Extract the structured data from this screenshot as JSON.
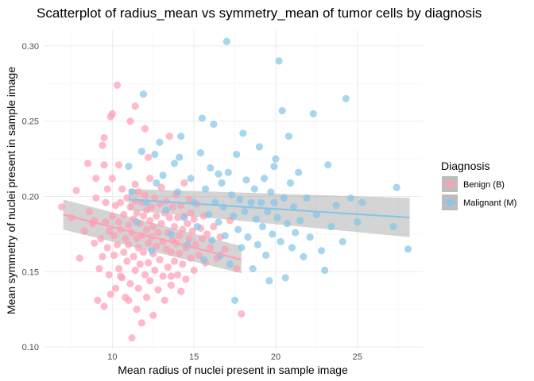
{
  "chart_data": {
    "type": "scatter",
    "title": "Scatterplot of radius_mean vs symmetry_mean of tumor cells by diagnosis",
    "xlabel": "Mean radius of nuclei present in sample image",
    "ylabel": "Mean symmetry of nuclei present in sample image",
    "xlim": [
      5.8,
      29.0
    ],
    "ylim": [
      0.0985,
      0.3105
    ],
    "x_ticks": [
      10,
      15,
      20,
      25
    ],
    "x_tick_labels": [
      "10",
      "15",
      "20",
      "25"
    ],
    "y_ticks": [
      0.1,
      0.15,
      0.2,
      0.25,
      0.3
    ],
    "y_tick_labels": [
      "0.10",
      "0.15",
      "0.20",
      "0.25",
      "0.30"
    ],
    "grid": true,
    "legend": {
      "title": "Diagnosis",
      "placement": "right",
      "entries": [
        "Benign (B)",
        "Malignant (M)"
      ]
    },
    "series": [
      {
        "name": "Benign (B)",
        "color": "#ffa0b4",
        "trend": {
          "x": [
            7.0,
            17.9
          ],
          "y": [
            0.188,
            0.158
          ],
          "band_lo": [
            0.178,
            0.149
          ],
          "band_hi": [
            0.198,
            0.167
          ]
        },
        "points": [
          [
            6.9,
            0.193
          ],
          [
            7.5,
            0.186
          ],
          [
            7.8,
            0.204
          ],
          [
            8.0,
            0.159
          ],
          [
            8.3,
            0.177
          ],
          [
            8.5,
            0.222
          ],
          [
            8.6,
            0.19
          ],
          [
            8.8,
            0.182
          ],
          [
            8.9,
            0.184
          ],
          [
            8.9,
            0.169
          ],
          [
            9.0,
            0.212
          ],
          [
            9.0,
            0.199
          ],
          [
            9.1,
            0.131
          ],
          [
            9.2,
            0.152
          ],
          [
            9.3,
            0.172
          ],
          [
            9.4,
            0.16
          ],
          [
            9.4,
            0.234
          ],
          [
            9.5,
            0.239
          ],
          [
            9.5,
            0.221
          ],
          [
            9.5,
            0.127
          ],
          [
            9.6,
            0.196
          ],
          [
            9.6,
            0.183
          ],
          [
            9.7,
            0.166
          ],
          [
            9.7,
            0.205
          ],
          [
            9.8,
            0.177
          ],
          [
            9.8,
            0.148
          ],
          [
            9.9,
            0.253
          ],
          [
            9.9,
            0.135
          ],
          [
            10.0,
            0.255
          ],
          [
            10.0,
            0.187
          ],
          [
            10.0,
            0.212
          ],
          [
            10.1,
            0.161
          ],
          [
            10.1,
            0.174
          ],
          [
            10.2,
            0.194
          ],
          [
            10.2,
            0.139
          ],
          [
            10.3,
            0.274
          ],
          [
            10.3,
            0.168
          ],
          [
            10.4,
            0.183
          ],
          [
            10.4,
            0.221
          ],
          [
            10.4,
            0.152
          ],
          [
            10.5,
            0.196
          ],
          [
            10.5,
            0.178
          ],
          [
            10.6,
            0.146
          ],
          [
            10.6,
            0.205
          ],
          [
            10.7,
            0.163
          ],
          [
            10.7,
            0.188
          ],
          [
            10.8,
            0.172
          ],
          [
            10.8,
            0.133
          ],
          [
            10.9,
            0.199
          ],
          [
            10.9,
            0.157
          ],
          [
            11.0,
            0.181
          ],
          [
            11.0,
            0.168
          ],
          [
            11.1,
            0.25
          ],
          [
            11.1,
            0.193
          ],
          [
            11.1,
            0.142
          ],
          [
            11.2,
            0.176
          ],
          [
            11.2,
            0.106
          ],
          [
            11.3,
            0.185
          ],
          [
            11.3,
            0.16
          ],
          [
            11.4,
            0.26
          ],
          [
            11.4,
            0.197
          ],
          [
            11.4,
            0.151
          ],
          [
            11.5,
            0.172
          ],
          [
            11.5,
            0.189
          ],
          [
            11.5,
            0.125
          ],
          [
            11.6,
            0.166
          ],
          [
            11.6,
            0.203
          ],
          [
            11.6,
            0.139
          ],
          [
            11.7,
            0.182
          ],
          [
            11.7,
            0.155
          ],
          [
            11.8,
            0.196
          ],
          [
            11.8,
            0.174
          ],
          [
            11.8,
            0.116
          ],
          [
            11.9,
            0.187
          ],
          [
            11.9,
            0.163
          ],
          [
            12.0,
            0.245
          ],
          [
            12.0,
            0.201
          ],
          [
            12.0,
            0.148
          ],
          [
            12.1,
            0.178
          ],
          [
            12.1,
            0.191
          ],
          [
            12.1,
            0.133
          ],
          [
            12.2,
            0.169
          ],
          [
            12.2,
            0.156
          ],
          [
            12.3,
            0.184
          ],
          [
            12.3,
            0.212
          ],
          [
            12.3,
            0.144
          ],
          [
            12.4,
            0.173
          ],
          [
            12.4,
            0.193
          ],
          [
            12.5,
            0.162
          ],
          [
            12.5,
            0.121
          ],
          [
            12.5,
            0.18
          ],
          [
            12.6,
            0.151
          ],
          [
            12.6,
            0.199
          ],
          [
            12.7,
            0.187
          ],
          [
            12.7,
            0.167
          ],
          [
            12.8,
            0.138
          ],
          [
            12.8,
            0.176
          ],
          [
            12.9,
            0.195
          ],
          [
            12.9,
            0.158
          ],
          [
            13.0,
            0.182
          ],
          [
            13.0,
            0.206
          ],
          [
            13.1,
            0.17
          ],
          [
            13.1,
            0.147
          ],
          [
            13.2,
            0.189
          ],
          [
            13.2,
            0.131
          ],
          [
            13.3,
            0.165
          ],
          [
            13.3,
            0.197
          ],
          [
            13.4,
            0.176
          ],
          [
            13.4,
            0.153
          ],
          [
            13.5,
            0.186
          ],
          [
            13.5,
            0.24
          ],
          [
            13.6,
            0.163
          ],
          [
            13.6,
            0.141
          ],
          [
            13.7,
            0.193
          ],
          [
            13.7,
            0.171
          ],
          [
            13.8,
            0.157
          ],
          [
            13.8,
            0.18
          ],
          [
            13.9,
            0.169
          ],
          [
            13.9,
            0.201
          ],
          [
            14.0,
            0.148
          ],
          [
            14.0,
            0.186
          ],
          [
            14.1,
            0.174
          ],
          [
            14.1,
            0.162
          ],
          [
            14.2,
            0.194
          ],
          [
            14.2,
            0.137
          ],
          [
            14.3,
            0.178
          ],
          [
            14.3,
            0.155
          ],
          [
            14.4,
            0.187
          ],
          [
            14.4,
            0.209
          ],
          [
            14.5,
            0.166
          ],
          [
            14.5,
            0.145
          ],
          [
            14.6,
            0.182
          ],
          [
            14.7,
            0.172
          ],
          [
            14.7,
            0.198
          ],
          [
            14.8,
            0.159
          ],
          [
            14.8,
            0.189
          ],
          [
            14.9,
            0.177
          ],
          [
            15.0,
            0.151
          ],
          [
            15.0,
            0.185
          ],
          [
            15.1,
            0.168
          ],
          [
            15.2,
            0.195
          ],
          [
            15.3,
            0.161
          ],
          [
            15.4,
            0.179
          ],
          [
            15.5,
            0.172
          ],
          [
            15.6,
            0.187
          ],
          [
            15.7,
            0.156
          ],
          [
            15.8,
            0.175
          ],
          [
            16.0,
            0.166
          ],
          [
            16.2,
            0.18
          ],
          [
            16.4,
            0.159
          ],
          [
            16.6,
            0.173
          ],
          [
            16.9,
            0.165
          ],
          [
            17.2,
            0.184
          ],
          [
            17.6,
            0.152
          ],
          [
            17.9,
            0.122
          ],
          [
            11.4,
            0.208
          ],
          [
            12.2,
            0.226
          ],
          [
            11.0,
            0.131
          ],
          [
            13.6,
            0.147
          ],
          [
            10.5,
            0.147
          ]
        ]
      },
      {
        "name": "Malignant (M)",
        "color": "#87c6e8",
        "trend": {
          "x": [
            11.0,
            28.2
          ],
          "y": [
            0.198,
            0.186
          ],
          "band_lo": [
            0.191,
            0.173
          ],
          "band_hi": [
            0.205,
            0.199
          ]
        },
        "points": [
          [
            11.0,
            0.22
          ],
          [
            11.2,
            0.203
          ],
          [
            11.5,
            0.183
          ],
          [
            11.8,
            0.23
          ],
          [
            11.9,
            0.268
          ],
          [
            12.1,
            0.196
          ],
          [
            12.4,
            0.164
          ],
          [
            12.7,
            0.209
          ],
          [
            12.9,
            0.236
          ],
          [
            13.1,
            0.214
          ],
          [
            13.3,
            0.191
          ],
          [
            13.6,
            0.175
          ],
          [
            13.8,
            0.222
          ],
          [
            14.0,
            0.203
          ],
          [
            14.2,
            0.24
          ],
          [
            14.4,
            0.186
          ],
          [
            14.6,
            0.168
          ],
          [
            14.8,
            0.212
          ],
          [
            15.0,
            0.196
          ],
          [
            15.2,
            0.18
          ],
          [
            15.4,
            0.229
          ],
          [
            15.5,
            0.252
          ],
          [
            15.6,
            0.158
          ],
          [
            15.7,
            0.205
          ],
          [
            15.9,
            0.188
          ],
          [
            16.0,
            0.219
          ],
          [
            16.1,
            0.171
          ],
          [
            16.2,
            0.248
          ],
          [
            16.3,
            0.196
          ],
          [
            16.5,
            0.183
          ],
          [
            16.6,
            0.161
          ],
          [
            16.7,
            0.209
          ],
          [
            16.8,
            0.193
          ],
          [
            16.9,
            0.174
          ],
          [
            17.0,
            0.303
          ],
          [
            17.1,
            0.216
          ],
          [
            17.2,
            0.155
          ],
          [
            17.3,
            0.201
          ],
          [
            17.4,
            0.187
          ],
          [
            17.5,
            0.131
          ],
          [
            17.6,
            0.228
          ],
          [
            17.7,
            0.178
          ],
          [
            17.8,
            0.198
          ],
          [
            17.9,
            0.166
          ],
          [
            18.0,
            0.242
          ],
          [
            18.1,
            0.19
          ],
          [
            18.2,
            0.211
          ],
          [
            18.3,
            0.173
          ],
          [
            18.5,
            0.196
          ],
          [
            18.6,
            0.152
          ],
          [
            18.7,
            0.205
          ],
          [
            18.8,
            0.185
          ],
          [
            18.9,
            0.168
          ],
          [
            19.0,
            0.233
          ],
          [
            19.1,
            0.196
          ],
          [
            19.2,
            0.18
          ],
          [
            19.3,
            0.212
          ],
          [
            19.4,
            0.161
          ],
          [
            19.5,
            0.19
          ],
          [
            19.6,
            0.144
          ],
          [
            19.7,
            0.203
          ],
          [
            19.8,
            0.175
          ],
          [
            19.9,
            0.196
          ],
          [
            20.0,
            0.225
          ],
          [
            20.1,
            0.186
          ],
          [
            20.2,
            0.29
          ],
          [
            20.3,
            0.17
          ],
          [
            20.4,
            0.257
          ],
          [
            20.5,
            0.199
          ],
          [
            20.6,
            0.146
          ],
          [
            20.7,
            0.182
          ],
          [
            20.8,
            0.24
          ],
          [
            20.9,
            0.209
          ],
          [
            21.0,
            0.166
          ],
          [
            21.1,
            0.193
          ],
          [
            21.2,
            0.176
          ],
          [
            21.4,
            0.216
          ],
          [
            21.5,
            0.184
          ],
          [
            21.7,
            0.16
          ],
          [
            21.9,
            0.199
          ],
          [
            22.1,
            0.173
          ],
          [
            22.3,
            0.255
          ],
          [
            22.5,
            0.188
          ],
          [
            22.8,
            0.164
          ],
          [
            23.0,
            0.151
          ],
          [
            23.2,
            0.221
          ],
          [
            23.4,
            0.18
          ],
          [
            23.7,
            0.194
          ],
          [
            24.1,
            0.17
          ],
          [
            24.3,
            0.265
          ],
          [
            24.6,
            0.199
          ],
          [
            25.0,
            0.183
          ],
          [
            25.3,
            0.196
          ],
          [
            27.2,
            0.18
          ],
          [
            27.4,
            0.206
          ],
          [
            28.1,
            0.165
          ],
          [
            12.6,
            0.228
          ],
          [
            14.1,
            0.226
          ],
          [
            16.5,
            0.215
          ],
          [
            19.9,
            0.22
          ]
        ]
      }
    ]
  }
}
